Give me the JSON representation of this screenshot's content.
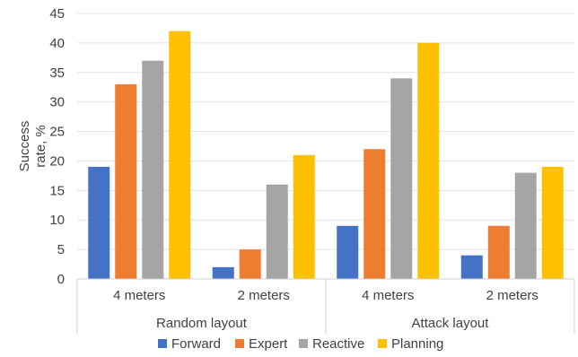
{
  "chart_data": {
    "type": "bar",
    "groups": [
      "Random layout",
      "Attack layout"
    ],
    "categories": [
      "4 meters",
      "2 meters",
      "4 meters",
      "2 meters"
    ],
    "series": [
      {
        "name": "Forward",
        "color": "#4472c4",
        "values": [
          19,
          2,
          9,
          4
        ]
      },
      {
        "name": "Expert",
        "color": "#ed7d31",
        "values": [
          33,
          5,
          22,
          9
        ]
      },
      {
        "name": "Reactive",
        "color": "#a5a5a5",
        "values": [
          37,
          16,
          34,
          18
        ]
      },
      {
        "name": "Planning",
        "color": "#ffc000",
        "values": [
          42,
          21,
          40,
          19
        ]
      }
    ],
    "ylabel": "Success rate, %",
    "ylim": [
      0,
      45
    ],
    "yticks": [
      0,
      5,
      10,
      15,
      20,
      25,
      30,
      35,
      40,
      45
    ],
    "grid": true,
    "legend": "bottom"
  }
}
